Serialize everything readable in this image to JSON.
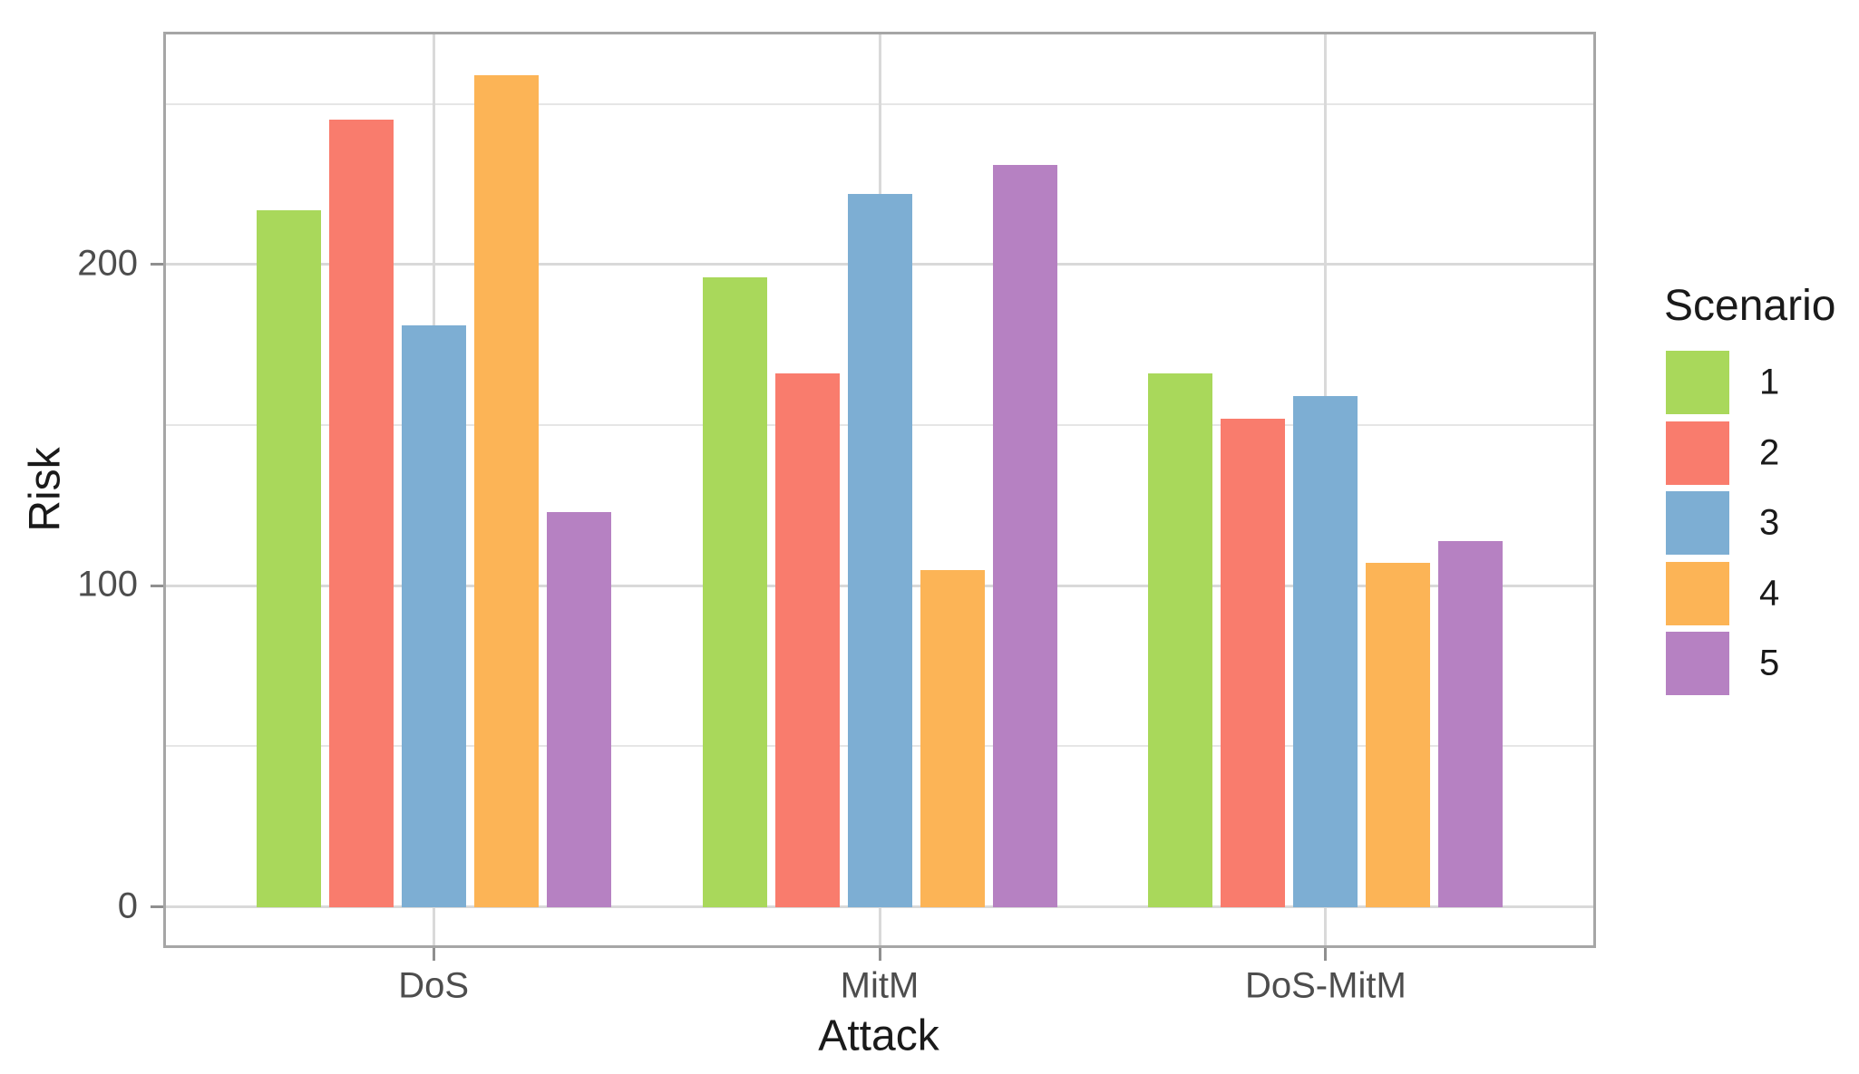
{
  "chart_data": {
    "type": "bar",
    "title": "",
    "xlabel": "Attack",
    "ylabel": "Risk",
    "categories": [
      "DoS",
      "MitM",
      "DoS-MitM"
    ],
    "series": [
      {
        "name": "1",
        "color": "#a9d85b",
        "values": [
          217,
          196,
          166
        ]
      },
      {
        "name": "2",
        "color": "#f97c6d",
        "values": [
          245,
          166,
          152
        ]
      },
      {
        "name": "3",
        "color": "#7daed3",
        "values": [
          181,
          222,
          159
        ]
      },
      {
        "name": "4",
        "color": "#fcb456",
        "values": [
          259,
          105,
          107
        ]
      },
      {
        "name": "5",
        "color": "#b681c2",
        "values": [
          123,
          231,
          114
        ]
      }
    ],
    "y_axis": {
      "tick_values": [
        0,
        100,
        200
      ],
      "tick_labels": [
        "0",
        "100",
        "200"
      ],
      "minor_gridline_values": [
        50,
        150,
        250
      ],
      "range": [
        -12.5,
        271.5
      ]
    },
    "legend": {
      "title": "Scenario",
      "position": "right",
      "entries": [
        "1",
        "2",
        "3",
        "4",
        "5"
      ]
    },
    "grid": "horizontal major+minor, vertical major at category centers",
    "bar_layout": "grouped-dodge"
  },
  "style": {
    "background": "#ffffff",
    "panel_border_color": "#a6a6a6",
    "grid_major_color": "#d9d9d9",
    "grid_minor_color": "#e6e6e6",
    "tick_color": "#8f8f8f",
    "tick_label_color": "#4d4d4d",
    "axis_title_color": "#1a1a1a"
  }
}
